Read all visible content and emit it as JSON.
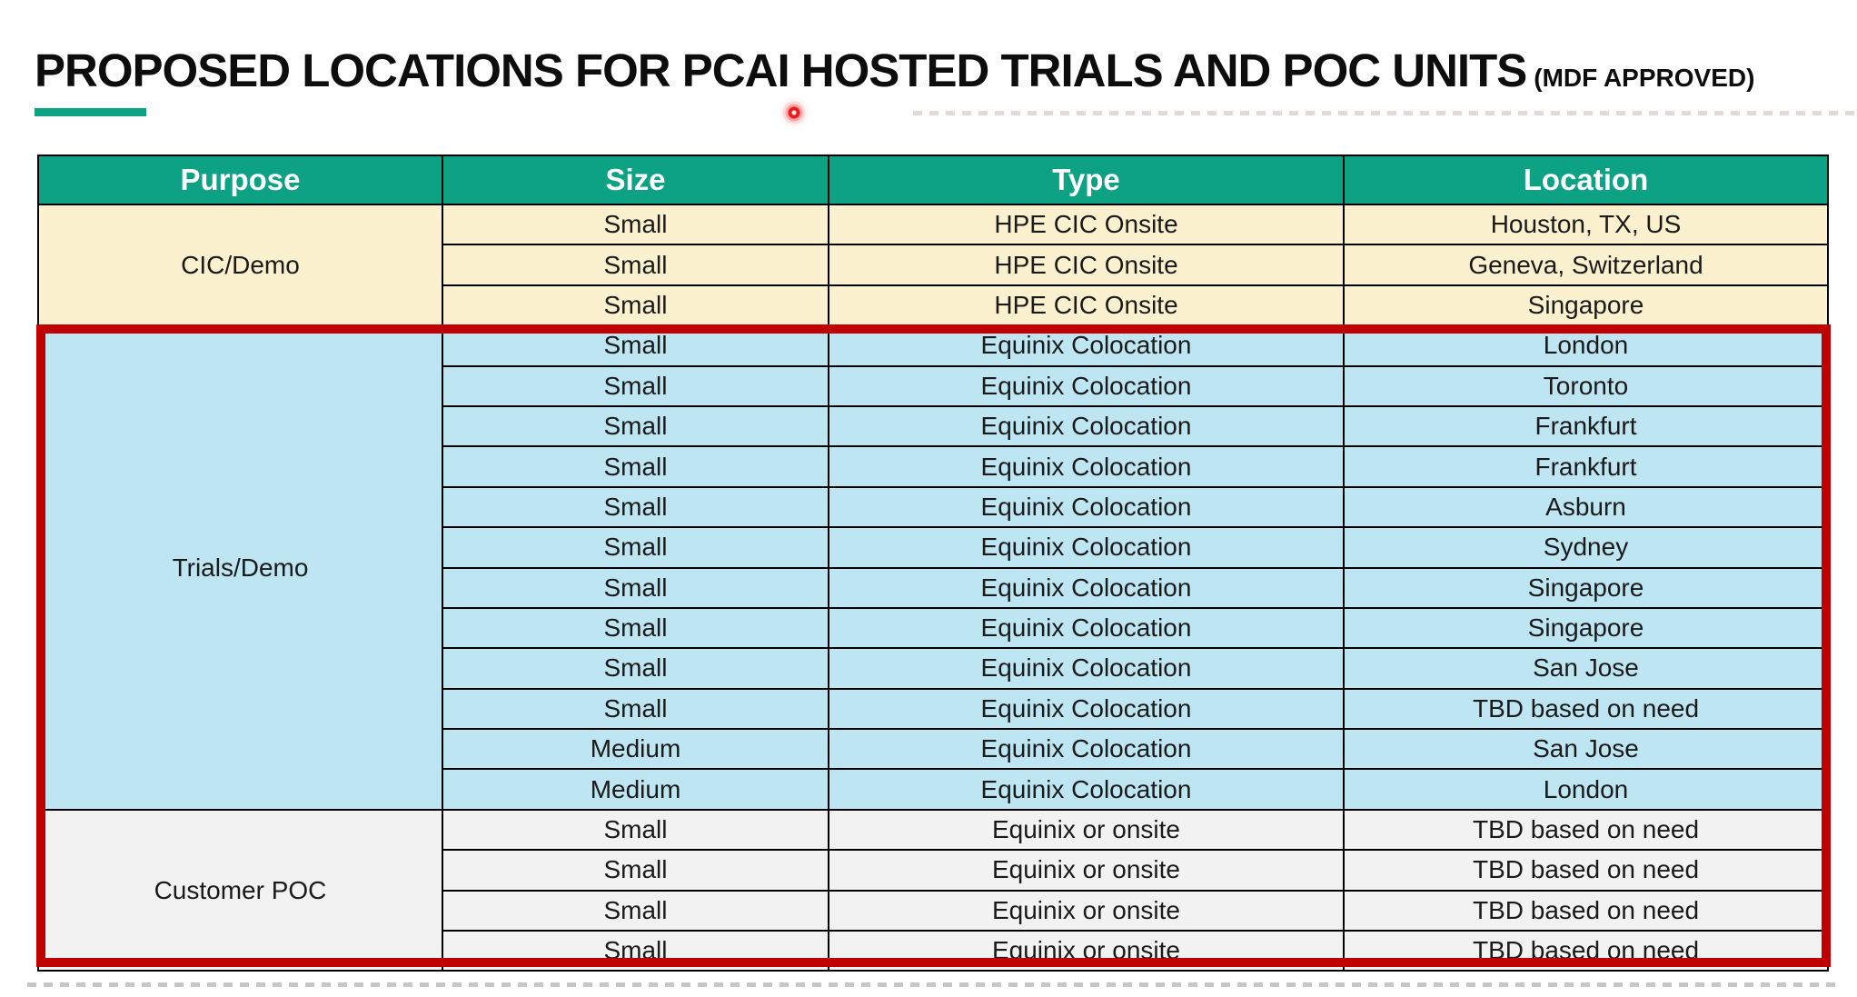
{
  "page": {
    "title": "PROPOSED LOCATIONS FOR PCAI HOSTED TRIALS AND POC UNITS",
    "title_suffix": "(MDF APPROVED)"
  },
  "colors": {
    "header_bg": "#0DA283",
    "accent_bar": "#0DA283",
    "cream": "#FBF1CE",
    "blue": "#BDE6F2",
    "gray": "#F2F2F2",
    "highlight": "#C00000",
    "laser_dot": "#E81C1C",
    "grid_line": "#000000",
    "header_text": "#FFFFFF",
    "body_text": "#1A1A1A"
  },
  "table": {
    "columns": [
      "Purpose",
      "Size",
      "Type",
      "Location"
    ],
    "sections": [
      {
        "purpose": "CIC/Demo",
        "style": "cream",
        "highlighted": false,
        "rows": [
          [
            "Small",
            "HPE CIC Onsite",
            "Houston, TX, US"
          ],
          [
            "Small",
            "HPE CIC Onsite",
            "Geneva, Switzerland"
          ],
          [
            "Small",
            "HPE CIC Onsite",
            "Singapore"
          ]
        ]
      },
      {
        "purpose": "Trials/Demo",
        "style": "blue",
        "highlighted": true,
        "rows": [
          [
            "Small",
            "Equinix Colocation",
            "London"
          ],
          [
            "Small",
            "Equinix Colocation",
            "Toronto"
          ],
          [
            "Small",
            "Equinix Colocation",
            "Frankfurt"
          ],
          [
            "Small",
            "Equinix Colocation",
            "Frankfurt"
          ],
          [
            "Small",
            "Equinix Colocation",
            "Asburn"
          ],
          [
            "Small",
            "Equinix Colocation",
            "Sydney"
          ],
          [
            "Small",
            "Equinix Colocation",
            "Singapore"
          ],
          [
            "Small",
            "Equinix Colocation",
            "Singapore"
          ],
          [
            "Small",
            "Equinix Colocation",
            "San Jose"
          ],
          [
            "Small",
            "Equinix Colocation",
            "TBD based on need"
          ],
          [
            "Medium",
            "Equinix Colocation",
            "San Jose"
          ],
          [
            "Medium",
            "Equinix Colocation",
            "London"
          ]
        ]
      },
      {
        "purpose": "Customer POC",
        "style": "gray",
        "highlighted": true,
        "rows": [
          [
            "Small",
            "Equinix or onsite",
            "TBD based on need"
          ],
          [
            "Small",
            "Equinix or onsite",
            "TBD based on need"
          ],
          [
            "Small",
            "Equinix or onsite",
            "TBD based on need"
          ],
          [
            "Small",
            "Equinix or onsite",
            "TBD based on need"
          ]
        ]
      }
    ]
  }
}
